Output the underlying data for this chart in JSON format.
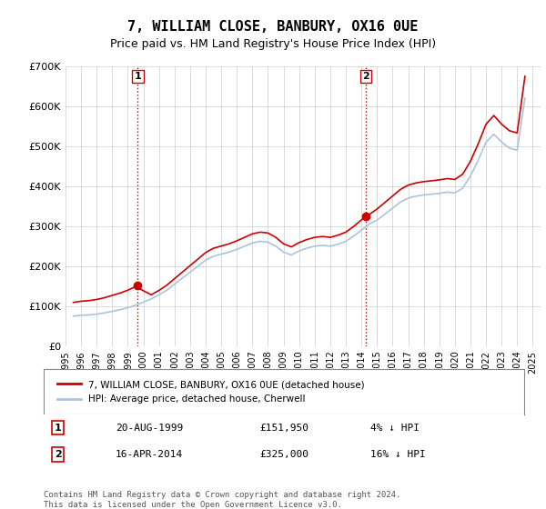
{
  "title": "7, WILLIAM CLOSE, BANBURY, OX16 0UE",
  "subtitle": "Price paid vs. HM Land Registry's House Price Index (HPI)",
  "title_fontsize": 11,
  "subtitle_fontsize": 9,
  "ylim": [
    0,
    700000
  ],
  "yticks": [
    0,
    100000,
    200000,
    300000,
    400000,
    500000,
    600000,
    700000
  ],
  "ytick_labels": [
    "£0",
    "£100K",
    "£200K",
    "£300K",
    "£400K",
    "£500K",
    "£600K",
    "£700K"
  ],
  "xlim_start": 1995.0,
  "xlim_end": 2025.5,
  "grid_color": "#cccccc",
  "plot_bg_color": "#ffffff",
  "fig_bg_color": "#ffffff",
  "hpi_color": "#aac4e0",
  "price_color": "#cc0000",
  "annotation_color": "#cc0000",
  "sale1_x": 1999.64,
  "sale1_y": 151950,
  "sale1_label": "1",
  "sale2_x": 2014.29,
  "sale2_y": 325000,
  "sale2_label": "2",
  "vline_color": "#cc0000",
  "vline_style": ":",
  "legend_label_price": "7, WILLIAM CLOSE, BANBURY, OX16 0UE (detached house)",
  "legend_label_hpi": "HPI: Average price, detached house, Cherwell",
  "table_row1_num": "1",
  "table_row1_date": "20-AUG-1999",
  "table_row1_price": "£151,950",
  "table_row1_hpi": "4% ↓ HPI",
  "table_row2_num": "2",
  "table_row2_date": "16-APR-2014",
  "table_row2_price": "£325,000",
  "table_row2_hpi": "16% ↓ HPI",
  "footer": "Contains HM Land Registry data © Crown copyright and database right 2024.\nThis data is licensed under the Open Government Licence v3.0.",
  "hpi_years": [
    1995.5,
    1996.0,
    1996.5,
    1997.0,
    1997.5,
    1998.0,
    1998.5,
    1999.0,
    1999.5,
    2000.0,
    2000.5,
    2001.0,
    2001.5,
    2002.0,
    2002.5,
    2003.0,
    2003.5,
    2004.0,
    2004.5,
    2005.0,
    2005.5,
    2006.0,
    2006.5,
    2007.0,
    2007.5,
    2008.0,
    2008.5,
    2009.0,
    2009.5,
    2010.0,
    2010.5,
    2011.0,
    2011.5,
    2012.0,
    2012.5,
    2013.0,
    2013.5,
    2014.0,
    2014.5,
    2015.0,
    2015.5,
    2016.0,
    2016.5,
    2017.0,
    2017.5,
    2018.0,
    2018.5,
    2019.0,
    2019.5,
    2020.0,
    2020.5,
    2021.0,
    2021.5,
    2022.0,
    2022.5,
    2023.0,
    2023.5,
    2024.0,
    2024.5
  ],
  "hpi_values": [
    75000,
    77000,
    78000,
    80000,
    83000,
    87000,
    91000,
    96000,
    102000,
    110000,
    118000,
    128000,
    140000,
    155000,
    170000,
    185000,
    200000,
    215000,
    225000,
    230000,
    235000,
    242000,
    250000,
    258000,
    262000,
    260000,
    250000,
    235000,
    228000,
    238000,
    245000,
    250000,
    252000,
    250000,
    255000,
    262000,
    275000,
    290000,
    305000,
    315000,
    330000,
    345000,
    360000,
    370000,
    375000,
    378000,
    380000,
    382000,
    385000,
    383000,
    395000,
    425000,
    465000,
    510000,
    530000,
    510000,
    495000,
    490000,
    620000
  ],
  "xtick_years": [
    "1995",
    "1996",
    "1997",
    "1998",
    "1999",
    "2000",
    "2001",
    "2002",
    "2003",
    "2004",
    "2005",
    "2006",
    "2007",
    "2008",
    "2009",
    "2010",
    "2011",
    "2012",
    "2013",
    "2014",
    "2015",
    "2016",
    "2017",
    "2018",
    "2019",
    "2020",
    "2021",
    "2022",
    "2023",
    "2024",
    "2025"
  ]
}
